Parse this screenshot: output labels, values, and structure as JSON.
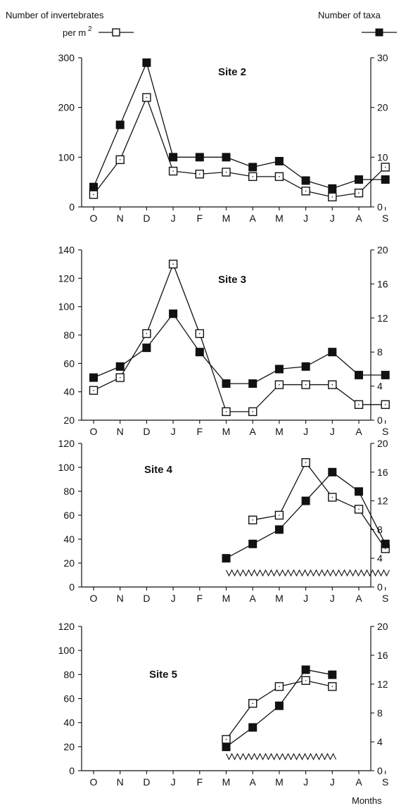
{
  "header": {
    "left_line1": "Number of invertebrates",
    "left_line2": "per m",
    "left_sup": "2",
    "right": "Number of taxa"
  },
  "footer": {
    "xlabel": "Months"
  },
  "colors": {
    "ink": "#111111",
    "open_marker_fill": "#ffffff",
    "filled_marker": "#111111"
  },
  "legend": [
    {
      "series": "invertebrates_per_m2",
      "marker": "open-square",
      "text_key": "left"
    },
    {
      "series": "taxa",
      "marker": "filled-square",
      "text_key": "right"
    }
  ],
  "chart_data": [
    {
      "type": "line",
      "title": "Site 2",
      "categories": [
        "O",
        "N",
        "D",
        "J",
        "F",
        "M",
        "A",
        "M",
        "J",
        "J",
        "A",
        "S"
      ],
      "ylim_left": [
        0,
        300
      ],
      "yticks_left": [
        0,
        100,
        200,
        300
      ],
      "ylim_right": [
        0,
        30
      ],
      "yticks_right": [
        0,
        10,
        20,
        30
      ],
      "dry_period": null,
      "series": [
        {
          "axis": "left",
          "marker": "open-square",
          "values": [
            25,
            95,
            220,
            72,
            66,
            70,
            61,
            61,
            32,
            20,
            28,
            80
          ]
        },
        {
          "axis": "right",
          "marker": "filled-square",
          "values": [
            4,
            16.5,
            29,
            10,
            10,
            10,
            8,
            9.2,
            5.3,
            3.7,
            5.5,
            5.5
          ]
        }
      ]
    },
    {
      "type": "line",
      "title": "Site 3",
      "categories": [
        "O",
        "N",
        "D",
        "J",
        "F",
        "M",
        "A",
        "M",
        "J",
        "J",
        "A",
        "S"
      ],
      "ylim_left": [
        20,
        140
      ],
      "yticks_left": [
        20,
        40,
        60,
        80,
        100,
        120,
        140
      ],
      "ylim_right": [
        0,
        20
      ],
      "yticks_right": [
        0,
        4,
        8,
        12,
        16,
        20
      ],
      "dry_period": null,
      "series": [
        {
          "axis": "left",
          "marker": "open-square",
          "values": [
            41,
            50,
            81,
            130,
            81,
            26,
            26,
            45,
            45,
            45,
            31,
            31
          ]
        },
        {
          "axis": "right",
          "marker": "filled-square",
          "values": [
            5,
            6.3,
            8.5,
            12.5,
            8,
            4.3,
            4.3,
            6,
            6.3,
            8,
            5.3,
            5.3
          ]
        }
      ]
    },
    {
      "type": "line",
      "title": "Site 4",
      "categories": [
        "O",
        "N",
        "D",
        "J",
        "F",
        "M",
        "A",
        "M",
        "J",
        "J",
        "A",
        "S"
      ],
      "ylim_left": [
        0,
        120
      ],
      "yticks_left": [
        0,
        20,
        40,
        60,
        80,
        100,
        120
      ],
      "ylim_right": [
        0,
        20
      ],
      "yticks_right": [
        0,
        4,
        8,
        12,
        16,
        20
      ],
      "dry_period": {
        "from": "M",
        "to": "S"
      },
      "series": [
        {
          "axis": "left",
          "marker": "open-square",
          "values": [
            null,
            null,
            null,
            null,
            null,
            null,
            56,
            60,
            104,
            75,
            65,
            32
          ]
        },
        {
          "axis": "right",
          "marker": "filled-square",
          "values": [
            null,
            null,
            null,
            null,
            null,
            4,
            6,
            8,
            12,
            16,
            13.3,
            6
          ]
        }
      ]
    },
    {
      "type": "line",
      "title": "Site 5",
      "categories": [
        "O",
        "N",
        "D",
        "J",
        "F",
        "M",
        "A",
        "M",
        "J",
        "J",
        "A",
        "S"
      ],
      "ylim_left": [
        0,
        120
      ],
      "yticks_left": [
        0,
        20,
        40,
        60,
        80,
        100,
        120
      ],
      "ylim_right": [
        0,
        20
      ],
      "yticks_right": [
        0,
        4,
        8,
        12,
        16,
        20
      ],
      "dry_period": {
        "from": "M",
        "to": "J"
      },
      "series": [
        {
          "axis": "left",
          "marker": "open-square",
          "values": [
            null,
            null,
            null,
            null,
            null,
            26,
            56,
            70,
            75,
            70,
            null,
            null
          ]
        },
        {
          "axis": "right",
          "marker": "filled-square",
          "values": [
            null,
            null,
            null,
            null,
            null,
            3.3,
            6,
            9,
            14,
            13.3,
            null,
            null
          ]
        }
      ]
    }
  ]
}
